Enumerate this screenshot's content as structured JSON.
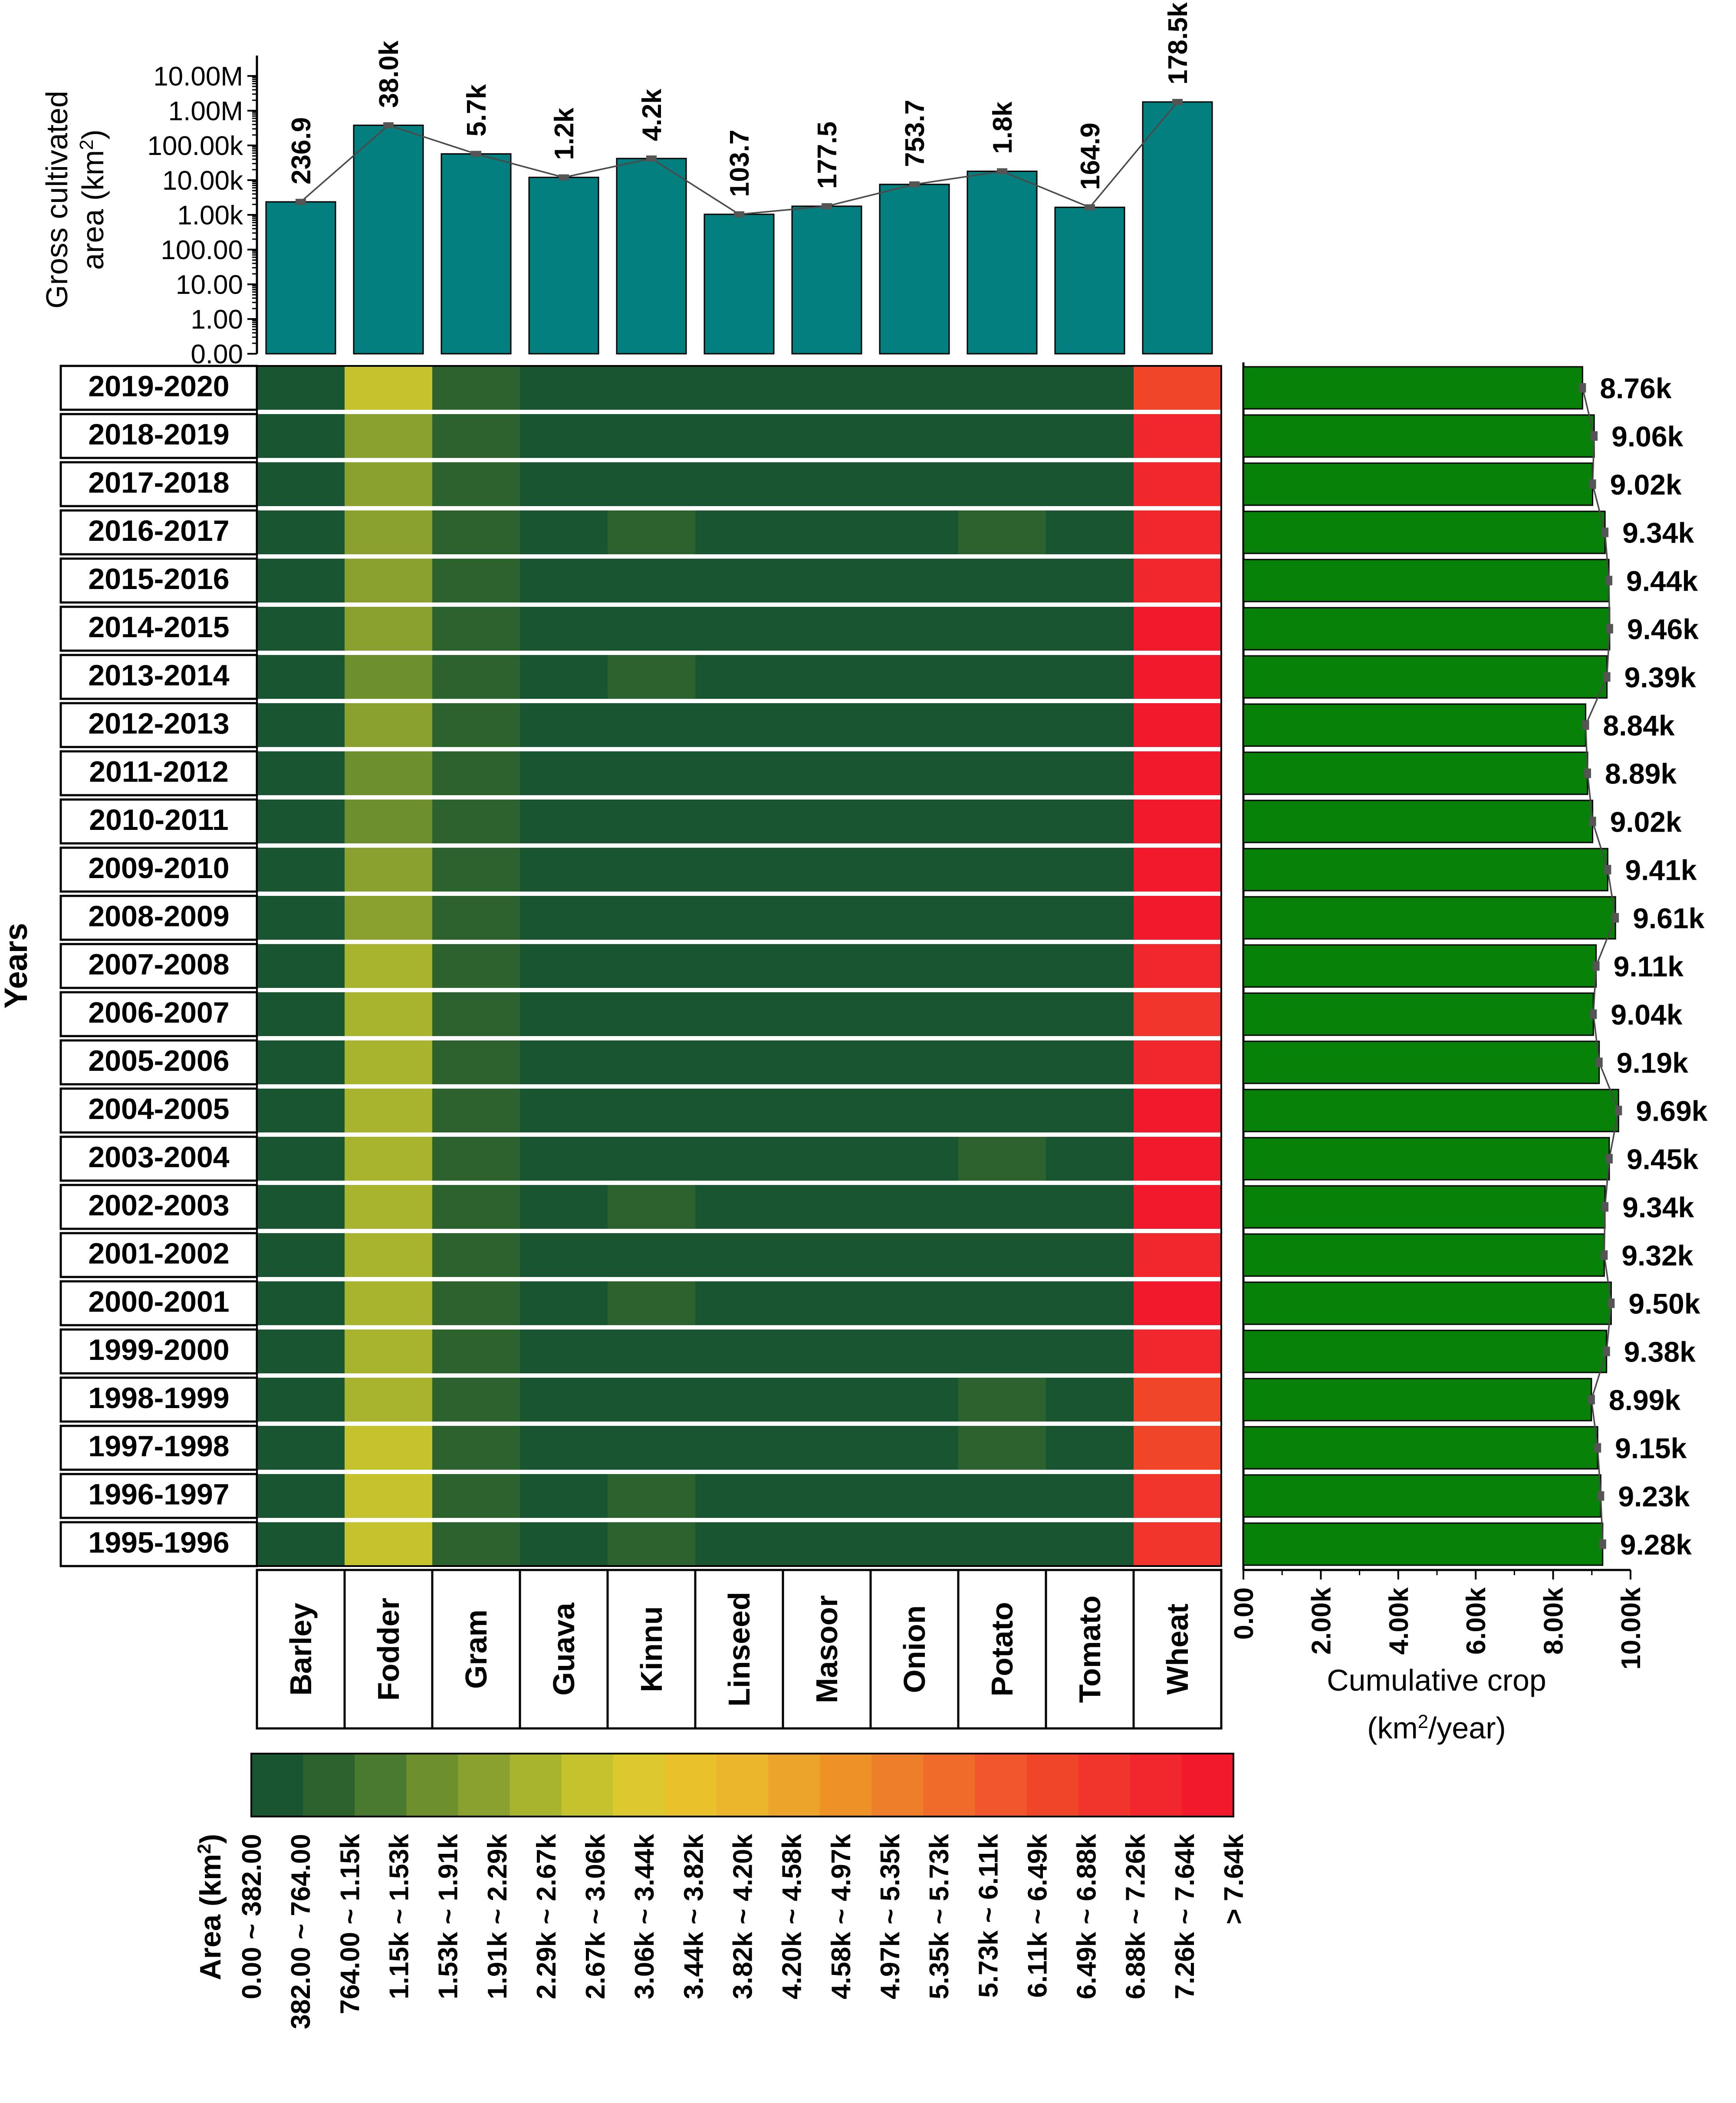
{
  "colors": {
    "bar_fill": "#047f80",
    "cumulative_fill": "#088108",
    "trend_line": "#4a4a4a",
    "frame": "#000000",
    "cell_palette": [
      "#1a5532",
      "#2c622d",
      "#4a7a2f",
      "#6d8f2e",
      "#8aa12f",
      "#a8b42d",
      "#c4c22d",
      "#dcc82f",
      "#e9c22b",
      "#ebb62b",
      "#eda42b",
      "#ee9126",
      "#ef7e2a",
      "#f06a2a",
      "#f1562c",
      "#f1452a",
      "#f1352c",
      "#f2272c",
      "#f3192d"
    ]
  },
  "chart_data": [
    {
      "type": "bar",
      "ylabel": "Gross cultivated area (km²)",
      "ylabel_lines": [
        "Gross cultivated",
        "area (km",
        "2",
        ")"
      ],
      "yscale": "log",
      "yticks": [
        "0.00",
        "1.00",
        "10.00",
        "100.00",
        "1.00k",
        "10.00k",
        "100.00k",
        "1.00M",
        "10.00M"
      ],
      "categories": [
        "Barley",
        "Fodder",
        "Gram",
        "Guava",
        "Kinnu",
        "Linseed",
        "Masoor",
        "Onion",
        "Potato",
        "Tomato",
        "Wheat"
      ],
      "values": [
        236.9,
        38000,
        5700,
        1200,
        4200,
        103.7,
        177.5,
        753.7,
        1800,
        164.9,
        178500
      ],
      "data_labels": [
        "236.9",
        "38.0k",
        "5.7k",
        "1.2k",
        "4.2k",
        "103.7",
        "177.5",
        "753.7",
        "1.8k",
        "164.9",
        "178.5k"
      ]
    },
    {
      "type": "heatmap",
      "ylabel": "Years",
      "years": [
        "2019-2020",
        "2018-2019",
        "2017-2018",
        "2016-2017",
        "2015-2016",
        "2014-2015",
        "2013-2014",
        "2012-2013",
        "2011-2012",
        "2010-2011",
        "2009-2010",
        "2008-2009",
        "2007-2008",
        "2006-2007",
        "2005-2006",
        "2004-2005",
        "2003-2004",
        "2002-2003",
        "2001-2002",
        "2000-2001",
        "1999-2000",
        "1998-1999",
        "1997-1998",
        "1996-1997",
        "1995-1996"
      ],
      "crops": [
        "Barley",
        "Fodder",
        "Gram",
        "Guava",
        "Kinnu",
        "Linseed",
        "Masoor",
        "Onion",
        "Potato",
        "Tomato",
        "Wheat"
      ],
      "levels": [
        [
          0,
          6,
          1,
          0,
          0,
          0,
          0,
          0,
          0,
          0,
          15
        ],
        [
          0,
          4,
          1,
          0,
          0,
          0,
          0,
          0,
          0,
          0,
          17
        ],
        [
          0,
          4,
          1,
          0,
          0,
          0,
          0,
          0,
          0,
          0,
          17
        ],
        [
          0,
          4,
          1,
          0,
          1,
          0,
          0,
          0,
          1,
          0,
          17
        ],
        [
          0,
          4,
          1,
          0,
          0,
          0,
          0,
          0,
          0,
          0,
          17
        ],
        [
          0,
          4,
          1,
          0,
          0,
          0,
          0,
          0,
          0,
          0,
          18
        ],
        [
          0,
          3,
          1,
          0,
          1,
          0,
          0,
          0,
          0,
          0,
          18
        ],
        [
          0,
          4,
          1,
          0,
          0,
          0,
          0,
          0,
          0,
          0,
          18
        ],
        [
          0,
          3,
          1,
          0,
          0,
          0,
          0,
          0,
          0,
          0,
          18
        ],
        [
          0,
          3,
          1,
          0,
          0,
          0,
          0,
          0,
          0,
          0,
          18
        ],
        [
          0,
          4,
          1,
          0,
          0,
          0,
          0,
          0,
          0,
          0,
          18
        ],
        [
          0,
          4,
          1,
          0,
          0,
          0,
          0,
          0,
          0,
          0,
          18
        ],
        [
          0,
          5,
          1,
          0,
          0,
          0,
          0,
          0,
          0,
          0,
          17
        ],
        [
          0,
          5,
          1,
          0,
          0,
          0,
          0,
          0,
          0,
          0,
          16
        ],
        [
          0,
          5,
          1,
          0,
          0,
          0,
          0,
          0,
          0,
          0,
          17
        ],
        [
          0,
          5,
          1,
          0,
          0,
          0,
          0,
          0,
          0,
          0,
          18
        ],
        [
          0,
          5,
          1,
          0,
          0,
          0,
          0,
          0,
          1,
          0,
          18
        ],
        [
          0,
          5,
          1,
          0,
          1,
          0,
          0,
          0,
          0,
          0,
          18
        ],
        [
          0,
          5,
          1,
          0,
          0,
          0,
          0,
          0,
          0,
          0,
          17
        ],
        [
          0,
          5,
          1,
          0,
          1,
          0,
          0,
          0,
          0,
          0,
          18
        ],
        [
          0,
          5,
          1,
          0,
          0,
          0,
          0,
          0,
          0,
          0,
          17
        ],
        [
          0,
          5,
          1,
          0,
          0,
          0,
          0,
          0,
          1,
          0,
          15
        ],
        [
          0,
          6,
          1,
          0,
          0,
          0,
          0,
          0,
          1,
          0,
          15
        ],
        [
          0,
          6,
          1,
          0,
          1,
          0,
          0,
          0,
          0,
          0,
          16
        ],
        [
          0,
          6,
          1,
          0,
          1,
          0,
          0,
          0,
          0,
          0,
          16
        ]
      ],
      "legend": {
        "title": "Area (km²)",
        "title_parts": [
          "Area (km",
          "2",
          ")"
        ],
        "labels": [
          "0.00 ~ 382.00",
          "382.00 ~ 764.00",
          "764.00 ~ 1.15k",
          "1.15k ~ 1.53k",
          "1.53k ~ 1.91k",
          "1.91k ~ 2.29k",
          "2.29k ~ 2.67k",
          "2.67k ~ 3.06k",
          "3.06k ~ 3.44k",
          "3.44k ~ 3.82k",
          "3.82k ~ 4.20k",
          "4.20k ~ 4.58k",
          "4.58k ~ 4.97k",
          "4.97k ~ 5.35k",
          "5.35k ~ 5.73k",
          "5.73k ~ 6.11k",
          "6.11k ~ 6.49k",
          "6.49k ~ 6.88k",
          "6.88k ~ 7.26k",
          "7.26k ~ 7.64k",
          "> 7.64k"
        ]
      }
    },
    {
      "type": "bar",
      "orientation": "horizontal",
      "xlabel": "Cumulative crop (km²/year)",
      "xlabel_lines": [
        "Cumulative crop",
        "(km",
        "2",
        "/year)"
      ],
      "xlim": [
        0,
        10000
      ],
      "xticks": [
        "0.00",
        "2.00k",
        "4.00k",
        "6.00k",
        "8.00k",
        "10.00k"
      ],
      "categories": [
        "2019-2020",
        "2018-2019",
        "2017-2018",
        "2016-2017",
        "2015-2016",
        "2014-2015",
        "2013-2014",
        "2012-2013",
        "2011-2012",
        "2010-2011",
        "2009-2010",
        "2008-2009",
        "2007-2008",
        "2006-2007",
        "2005-2006",
        "2004-2005",
        "2003-2004",
        "2002-2003",
        "2001-2002",
        "2000-2001",
        "1999-2000",
        "1998-1999",
        "1997-1998",
        "1996-1997",
        "1995-1996"
      ],
      "values": [
        8760,
        9060,
        9020,
        9340,
        9440,
        9460,
        9390,
        8840,
        8890,
        9020,
        9410,
        9610,
        9110,
        9040,
        9190,
        9690,
        9450,
        9340,
        9320,
        9500,
        9380,
        8990,
        9150,
        9230,
        9280
      ],
      "data_labels": [
        "8.76k",
        "9.06k",
        "9.02k",
        "9.34k",
        "9.44k",
        "9.46k",
        "9.39k",
        "8.84k",
        "8.89k",
        "9.02k",
        "9.41k",
        "9.61k",
        "9.11k",
        "9.04k",
        "9.19k",
        "9.69k",
        "9.45k",
        "9.34k",
        "9.32k",
        "9.50k",
        "9.38k",
        "8.99k",
        "9.15k",
        "9.23k",
        "9.28k"
      ]
    }
  ]
}
